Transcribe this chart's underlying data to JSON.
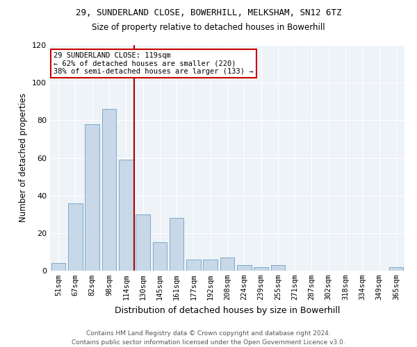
{
  "title1": "29, SUNDERLAND CLOSE, BOWERHILL, MELKSHAM, SN12 6TZ",
  "title2": "Size of property relative to detached houses in Bowerhill",
  "xlabel": "Distribution of detached houses by size in Bowerhill",
  "ylabel": "Number of detached properties",
  "categories": [
    "51sqm",
    "67sqm",
    "82sqm",
    "98sqm",
    "114sqm",
    "130sqm",
    "145sqm",
    "161sqm",
    "177sqm",
    "192sqm",
    "208sqm",
    "224sqm",
    "239sqm",
    "255sqm",
    "271sqm",
    "287sqm",
    "302sqm",
    "318sqm",
    "334sqm",
    "349sqm",
    "365sqm"
  ],
  "values": [
    4,
    36,
    78,
    86,
    59,
    30,
    15,
    28,
    6,
    6,
    7,
    3,
    2,
    3,
    0,
    0,
    0,
    0,
    0,
    0,
    2
  ],
  "bar_color": "#c8d8e8",
  "bar_edge_color": "#7aaac8",
  "ylim": [
    0,
    120
  ],
  "yticks": [
    0,
    20,
    40,
    60,
    80,
    100,
    120
  ],
  "vline_x": 4.5,
  "vline_color": "#aa0000",
  "annotation_line1": "29 SUNDERLAND CLOSE: 119sqm",
  "annotation_line2": "← 62% of detached houses are smaller (220)",
  "annotation_line3": "38% of semi-detached houses are larger (133) →",
  "annotation_box_color": "#ffffff",
  "annotation_box_edge": "#cc0000",
  "bg_color": "#eef3f8",
  "footer1": "Contains HM Land Registry data © Crown copyright and database right 2024.",
  "footer2": "Contains public sector information licensed under the Open Government Licence v3.0."
}
